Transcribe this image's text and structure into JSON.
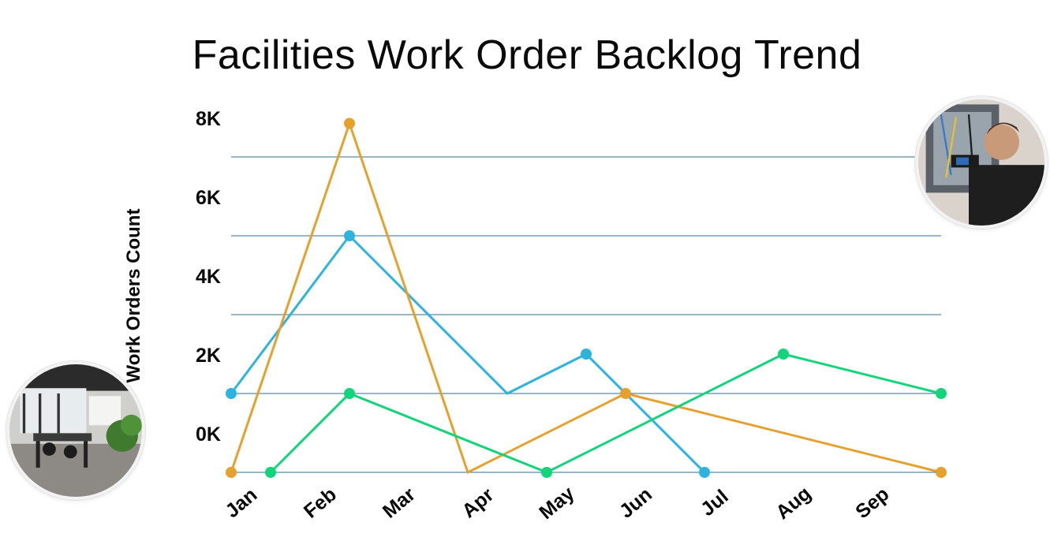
{
  "chart_data": {
    "type": "line",
    "title": "Facilities Work Order Backlog Trend",
    "xlabel": "",
    "ylabel": "Work Orders Count",
    "categories": [
      "Jan",
      "Feb",
      "Mar",
      "Apr",
      "May",
      "Jun",
      "Jul",
      "Aug",
      "Sep"
    ],
    "yticks": [
      "8K",
      "6K",
      "4K",
      "2K",
      "0K"
    ],
    "ylim": [
      -1000,
      8000
    ],
    "grid": true,
    "legend": "none",
    "series": [
      {
        "color": "#2eb4dc",
        "points": [
          {
            "x": 0.0,
            "y": 1000,
            "marker": true
          },
          {
            "x": 1.5,
            "y": 5000,
            "marker": true
          },
          {
            "x": 3.5,
            "y": 1000,
            "marker": false
          },
          {
            "x": 4.5,
            "y": 2000,
            "marker": true
          },
          {
            "x": 6.0,
            "y": -1000,
            "marker": true
          }
        ]
      },
      {
        "color": "#e6a02d",
        "points": [
          {
            "x": 0.0,
            "y": -1000,
            "marker": true
          },
          {
            "x": 1.5,
            "y": 7850,
            "marker": true
          },
          {
            "x": 3.0,
            "y": -1000,
            "marker": false
          },
          {
            "x": 5.0,
            "y": 1000,
            "marker": true
          },
          {
            "x": 9.0,
            "y": -1000,
            "marker": true
          }
        ]
      },
      {
        "color": "#12d47a",
        "points": [
          {
            "x": 0.5,
            "y": -1000,
            "marker": true
          },
          {
            "x": 1.5,
            "y": 1000,
            "marker": true
          },
          {
            "x": 4.0,
            "y": -1000,
            "marker": true
          },
          {
            "x": 7.0,
            "y": 2000,
            "marker": true
          },
          {
            "x": 9.0,
            "y": 1000,
            "marker": true
          }
        ]
      }
    ]
  },
  "images": {
    "left": "office-workspace-photo",
    "right": "technician-electrical-panel-photo"
  }
}
